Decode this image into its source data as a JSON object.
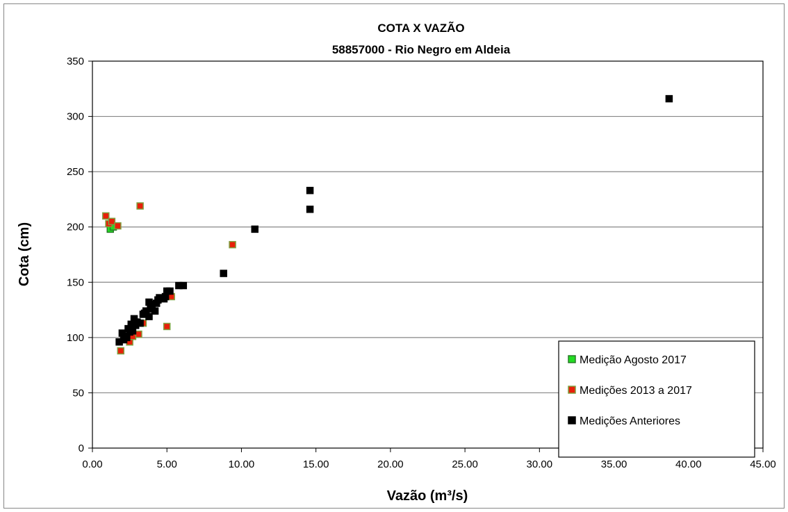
{
  "chart_data": {
    "type": "scatter",
    "title": "COTA X VAZÃO",
    "subtitle": "58857000 - Rio Negro em Aldeia",
    "xlabel": "Vazão (m³/s)",
    "ylabel": "Cota (cm)",
    "xlim": [
      0,
      45
    ],
    "ylim": [
      0,
      350
    ],
    "x_ticks": [
      "0.00",
      "5.00",
      "10.00",
      "15.00",
      "20.00",
      "25.00",
      "30.00",
      "35.00",
      "40.00",
      "45.00"
    ],
    "y_ticks": [
      "0",
      "50",
      "100",
      "150",
      "200",
      "250",
      "300",
      "350"
    ],
    "grid": "horizontal",
    "legend_position": "bottom-right",
    "series": [
      {
        "name": "Medições Anteriores",
        "color": "#000000",
        "border": "#000000",
        "points": [
          [
            1.8,
            96
          ],
          [
            2.0,
            104
          ],
          [
            2.1,
            98
          ],
          [
            2.2,
            101
          ],
          [
            2.3,
            100
          ],
          [
            2.4,
            108
          ],
          [
            2.5,
            105
          ],
          [
            2.6,
            112
          ],
          [
            2.7,
            106
          ],
          [
            2.8,
            117
          ],
          [
            2.9,
            111
          ],
          [
            3.0,
            114
          ],
          [
            3.2,
            113
          ],
          [
            3.4,
            121
          ],
          [
            3.5,
            122
          ],
          [
            3.6,
            124
          ],
          [
            3.8,
            119
          ],
          [
            3.8,
            132
          ],
          [
            3.9,
            126
          ],
          [
            4.0,
            130
          ],
          [
            4.2,
            124
          ],
          [
            4.3,
            131
          ],
          [
            4.4,
            134
          ],
          [
            4.5,
            136
          ],
          [
            4.8,
            135
          ],
          [
            4.9,
            137
          ],
          [
            5.0,
            142
          ],
          [
            5.2,
            142
          ],
          [
            5.8,
            147
          ],
          [
            6.1,
            147
          ],
          [
            8.8,
            158
          ],
          [
            10.9,
            198
          ],
          [
            14.6,
            216
          ],
          [
            14.6,
            233
          ],
          [
            38.7,
            316
          ]
        ]
      },
      {
        "name": "Medições 2013 a 2017",
        "color": "#e8200a",
        "border": "#7f9f3f",
        "points": [
          [
            0.9,
            210
          ],
          [
            1.1,
            203
          ],
          [
            1.3,
            205
          ],
          [
            1.7,
            201
          ],
          [
            1.9,
            88
          ],
          [
            2.5,
            96
          ],
          [
            3.1,
            103
          ],
          [
            3.2,
            219
          ],
          [
            3.4,
            113
          ],
          [
            5.0,
            110
          ],
          [
            5.3,
            137
          ],
          [
            9.4,
            184
          ],
          [
            2.2,
            100
          ],
          [
            2.7,
            101
          ]
        ]
      },
      {
        "name": "Medição Agosto 2017",
        "color": "#22dd22",
        "border": "#2a7a2a",
        "points": [
          [
            1.2,
            198
          ],
          [
            1.4,
            200
          ]
        ]
      }
    ],
    "legend_order": [
      "Medição Agosto 2017",
      "Medições 2013 a 2017",
      "Medições Anteriores"
    ]
  }
}
